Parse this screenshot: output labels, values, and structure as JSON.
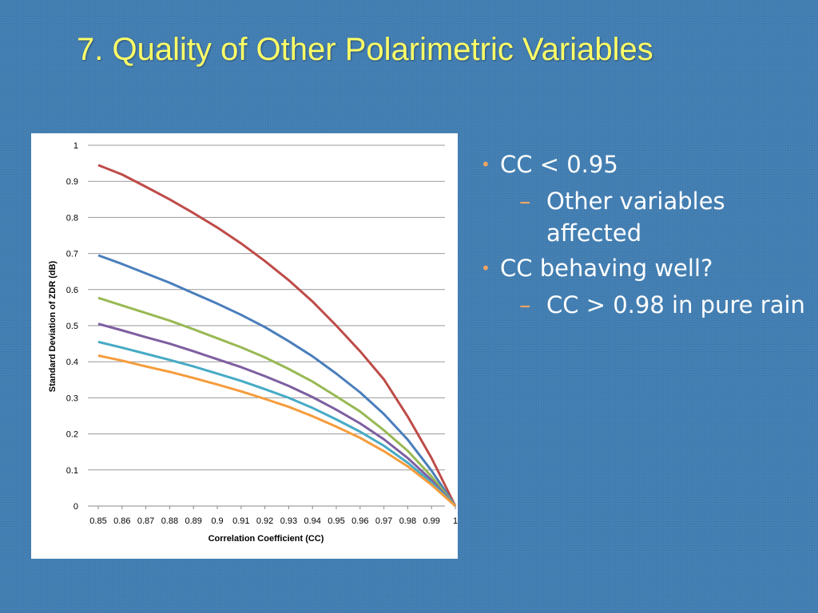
{
  "slide": {
    "title": "7.  Quality of Other Polarimetric Variables"
  },
  "bullets": [
    {
      "text": "CC < 0.95",
      "sub": [
        "Other variables affected"
      ]
    },
    {
      "text": "CC behaving well?",
      "sub": [
        "CC > 0.98 in pure rain"
      ]
    }
  ],
  "colors": {
    "background": "#3f7bb0",
    "title": "#ffff66",
    "bullet_marker": "#f4a460"
  },
  "chart_data": {
    "type": "line",
    "xlabel": "Correlation Coefficient (CC)",
    "ylabel": "Standard Deviation of ZDR (dB)",
    "x_ticks": [
      "0.85",
      "0.86",
      "0.87",
      "0.88",
      "0.89",
      "0.9",
      "0.91",
      "0.92",
      "0.93",
      "0.94",
      "0.95",
      "0.96",
      "0.97",
      "0.98",
      "0.99",
      "1"
    ],
    "y_ticks": [
      "0",
      "0.1",
      "0.2",
      "0.3",
      "0.4",
      "0.5",
      "0.6",
      "0.7",
      "0.8",
      "0.9",
      "1"
    ],
    "ylim": [
      0,
      1
    ],
    "grid": "horizontal",
    "x": [
      0.85,
      0.86,
      0.87,
      0.88,
      0.89,
      0.9,
      0.91,
      0.92,
      0.93,
      0.94,
      0.95,
      0.96,
      0.97,
      0.98,
      0.99,
      1.0
    ],
    "series": [
      {
        "color": "#be4b48",
        "values": [
          0.945,
          0.919,
          0.885,
          0.85,
          0.812,
          0.772,
          0.728,
          0.679,
          0.626,
          0.567,
          0.5,
          0.429,
          0.351,
          0.248,
          0.133,
          0.0
        ]
      },
      {
        "color": "#4a7ebb",
        "values": [
          0.695,
          0.671,
          0.645,
          0.619,
          0.59,
          0.561,
          0.53,
          0.496,
          0.457,
          0.415,
          0.367,
          0.315,
          0.255,
          0.184,
          0.098,
          0.0
        ]
      },
      {
        "color": "#98b954",
        "values": [
          0.577,
          0.556,
          0.535,
          0.514,
          0.49,
          0.465,
          0.44,
          0.412,
          0.38,
          0.345,
          0.304,
          0.262,
          0.21,
          0.153,
          0.082,
          0.0
        ]
      },
      {
        "color": "#7d5fa0",
        "values": [
          0.505,
          0.487,
          0.468,
          0.45,
          0.429,
          0.407,
          0.385,
          0.36,
          0.333,
          0.302,
          0.267,
          0.229,
          0.185,
          0.133,
          0.072,
          0.0
        ]
      },
      {
        "color": "#46aac5",
        "values": [
          0.455,
          0.439,
          0.422,
          0.405,
          0.387,
          0.367,
          0.347,
          0.324,
          0.3,
          0.272,
          0.24,
          0.206,
          0.167,
          0.12,
          0.065,
          0.0
        ]
      },
      {
        "color": "#f59c3c",
        "values": [
          0.417,
          0.403,
          0.387,
          0.372,
          0.355,
          0.337,
          0.318,
          0.297,
          0.275,
          0.249,
          0.22,
          0.189,
          0.152,
          0.11,
          0.059,
          0.0
        ]
      }
    ]
  }
}
